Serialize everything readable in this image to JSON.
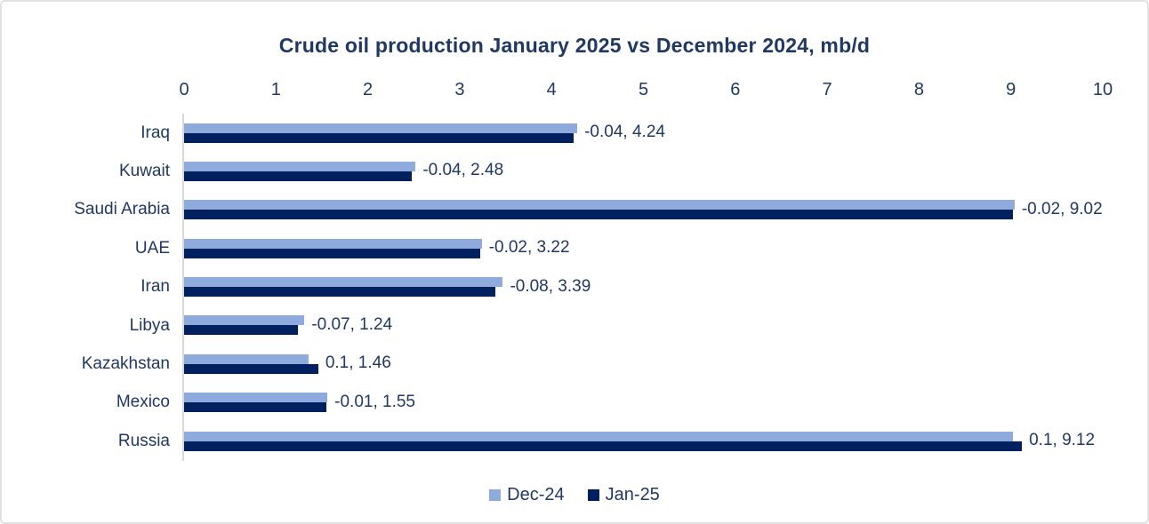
{
  "chart_data": {
    "type": "bar",
    "orientation": "horizontal",
    "title": "Crude oil production January 2025 vs December 2024, mb/d",
    "categories": [
      "Iraq",
      "Kuwait",
      "Saudi Arabia",
      "UAE",
      "Iran",
      "Libya",
      "Kazakhstan",
      "Mexico",
      "Russia"
    ],
    "series": [
      {
        "name": "Dec-24",
        "color": "#8faadc",
        "values": [
          4.28,
          2.52,
          9.04,
          3.24,
          3.47,
          1.31,
          1.36,
          1.56,
          9.02
        ]
      },
      {
        "name": "Jan-25",
        "color": "#002060",
        "values": [
          4.24,
          2.48,
          9.02,
          3.22,
          3.39,
          1.24,
          1.46,
          1.55,
          9.12
        ]
      }
    ],
    "data_labels": [
      "-0.04, 4.24",
      "-0.04, 2.48",
      "-0.02, 9.02",
      "-0.02, 3.22",
      "-0.08, 3.39",
      "-0.07, 1.24",
      "0.1, 1.46",
      "-0.01, 1.55",
      "0.1, 9.12"
    ],
    "data_label_format": "change, Jan-25 value (mb/d)",
    "x_ticks": [
      0,
      1,
      2,
      3,
      4,
      5,
      6,
      7,
      8,
      9,
      10
    ],
    "xlim": [
      0,
      10
    ],
    "xlabel": "",
    "ylabel": "",
    "axis_position": "top",
    "grid": false,
    "legend": [
      "Dec-24",
      "Jan-25"
    ],
    "legend_position": "bottom-center",
    "colors": {
      "text": "#1f3864",
      "axis_line": "#d9d9d9",
      "frame_border": "#e2e2e2",
      "background": "#ffffff"
    }
  }
}
